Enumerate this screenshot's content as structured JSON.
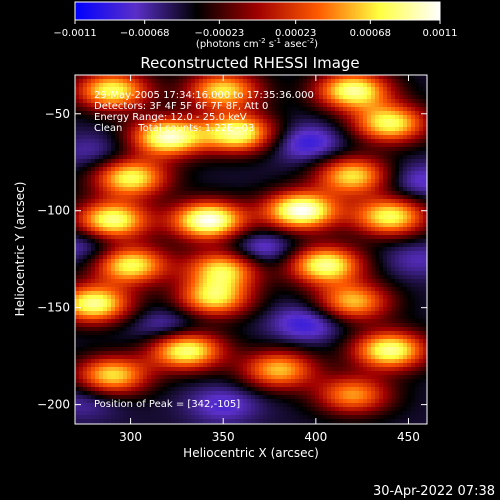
{
  "chart_data": {
    "type": "heatmap",
    "title": "Reconstructed RHESSI Image",
    "xlabel": "Heliocentric X (arcsec)",
    "ylabel": "Heliocentric Y (arcsec)",
    "x_ticks": [
      300,
      350,
      400,
      450
    ],
    "y_ticks": [
      -50,
      -100,
      -150,
      -200
    ],
    "xlim": [
      270,
      460
    ],
    "ylim": [
      -210,
      -30
    ],
    "colorbar": {
      "units_prefix": "(photons cm",
      "units_sup1": "-2",
      "units_mid": " s",
      "units_sup2": "-1",
      "units_mid2": " asec",
      "units_sup3": "-2",
      "units_suffix": ")",
      "min": -0.0011,
      "max": 0.0011,
      "tick_labels": [
        "-0.0011",
        "-0.00068",
        "-0.00023",
        "0.00023",
        "0.00068",
        "0.0011"
      ],
      "stops": [
        "#0000ff",
        "#5a2fc8",
        "#000000",
        "#a00000",
        "#ff5a00",
        "#ffff40",
        "#ffffff"
      ]
    },
    "info_lines": [
      "29-May-2005 17:34:16.000 to 17:35:36.000",
      "Detectors: 3F 4F 5F 6F 7F 8F, Att 0",
      "Energy Range: 12.0 - 25.0 keV",
      "Clean     Total counts: 1.22E+03"
    ],
    "peak_label": "Position of Peak = [342,-105]",
    "peak_position": [
      342,
      -105
    ],
    "blobs": [
      {
        "x": 290,
        "y": -38,
        "v": 0.0008
      },
      {
        "x": 350,
        "y": -38,
        "v": 0.0007
      },
      {
        "x": 420,
        "y": -38,
        "v": 0.0009
      },
      {
        "x": 320,
        "y": -62,
        "v": 0.001
      },
      {
        "x": 358,
        "y": -60,
        "v": 0.0009
      },
      {
        "x": 440,
        "y": -55,
        "v": 0.0008
      },
      {
        "x": 280,
        "y": -70,
        "v": -0.0007
      },
      {
        "x": 395,
        "y": -65,
        "v": -0.0009
      },
      {
        "x": 300,
        "y": -83,
        "v": 0.0008
      },
      {
        "x": 420,
        "y": -82,
        "v": 0.0007
      },
      {
        "x": 455,
        "y": -85,
        "v": -0.0008
      },
      {
        "x": 290,
        "y": -105,
        "v": 0.0009
      },
      {
        "x": 342,
        "y": -105,
        "v": 0.0011
      },
      {
        "x": 392,
        "y": -100,
        "v": 0.0011
      },
      {
        "x": 440,
        "y": -103,
        "v": 0.0008
      },
      {
        "x": 275,
        "y": -118,
        "v": -0.0008
      },
      {
        "x": 370,
        "y": -120,
        "v": -0.0009
      },
      {
        "x": 455,
        "y": -125,
        "v": -0.0007
      },
      {
        "x": 300,
        "y": -128,
        "v": 0.0008
      },
      {
        "x": 350,
        "y": -130,
        "v": 0.0007
      },
      {
        "x": 405,
        "y": -128,
        "v": 0.0009
      },
      {
        "x": 280,
        "y": -148,
        "v": 0.0009
      },
      {
        "x": 345,
        "y": -145,
        "v": 0.0007
      },
      {
        "x": 420,
        "y": -147,
        "v": 0.0006
      },
      {
        "x": 320,
        "y": -160,
        "v": -0.0008
      },
      {
        "x": 395,
        "y": -158,
        "v": -0.0009
      },
      {
        "x": 330,
        "y": -172,
        "v": 0.0009
      },
      {
        "x": 440,
        "y": -172,
        "v": 0.0009
      },
      {
        "x": 290,
        "y": -185,
        "v": 0.0007
      },
      {
        "x": 380,
        "y": -182,
        "v": 0.0006
      },
      {
        "x": 350,
        "y": -200,
        "v": -0.0008
      },
      {
        "x": 420,
        "y": -195,
        "v": 0.0005
      },
      {
        "x": 275,
        "y": -198,
        "v": -0.0007
      }
    ],
    "grid": false
  },
  "timestamp": "30-Apr-2022 07:38"
}
